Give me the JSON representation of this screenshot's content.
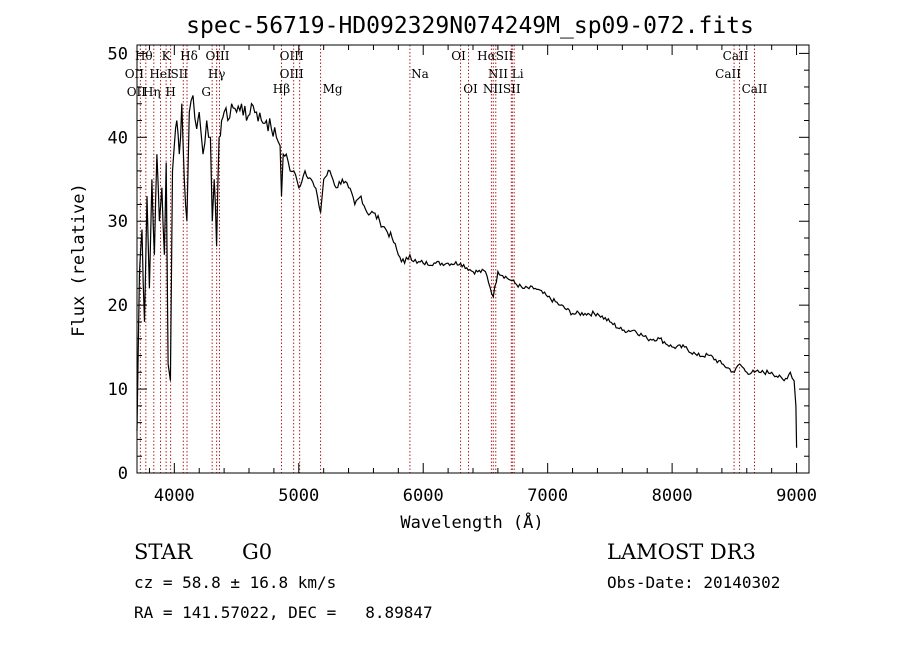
{
  "chart_data": {
    "type": "line",
    "title": "spec-56719-HD092329N074249M_sp09-072.fits",
    "xlabel": "Wavelength (Å)",
    "ylabel": "Flux (relative)",
    "xlim": [
      3700,
      9100
    ],
    "ylim": [
      0,
      51
    ],
    "xticks": [
      4000,
      5000,
      6000,
      7000,
      8000,
      9000
    ],
    "yticks": [
      0,
      10,
      20,
      30,
      40,
      50
    ],
    "series": [
      {
        "name": "flux",
        "x": [
          3700,
          3720,
          3740,
          3760,
          3780,
          3800,
          3820,
          3840,
          3860,
          3880,
          3900,
          3920,
          3935,
          3950,
          3968,
          3985,
          4000,
          4020,
          4040,
          4060,
          4080,
          4101,
          4120,
          4150,
          4180,
          4200,
          4230,
          4260,
          4290,
          4305,
          4320,
          4340,
          4360,
          4380,
          4400,
          4430,
          4460,
          4500,
          4540,
          4580,
          4620,
          4660,
          4700,
          4740,
          4780,
          4820,
          4850,
          4861,
          4875,
          4900,
          4930,
          4960,
          5000,
          5050,
          5100,
          5150,
          5175,
          5200,
          5250,
          5300,
          5350,
          5400,
          5450,
          5500,
          5550,
          5600,
          5650,
          5700,
          5750,
          5800,
          5850,
          5893,
          5950,
          6000,
          6100,
          6200,
          6300,
          6400,
          6500,
          6563,
          6600,
          6700,
          6800,
          6900,
          7000,
          7100,
          7200,
          7300,
          7400,
          7500,
          7600,
          7700,
          7800,
          7900,
          8000,
          8100,
          8200,
          8300,
          8400,
          8500,
          8542,
          8600,
          8662,
          8700,
          8800,
          8900,
          8950,
          8980,
          8995,
          9000
        ],
        "y": [
          5,
          24,
          29,
          18,
          33,
          22,
          35,
          26,
          38,
          30,
          34,
          26,
          37,
          13,
          11,
          36,
          39,
          42,
          38,
          44,
          35,
          30,
          43,
          45,
          41,
          43,
          38,
          42,
          40,
          30,
          35,
          27,
          40,
          42,
          43,
          42,
          44,
          43,
          44,
          42,
          44,
          43,
          42,
          42,
          41,
          40,
          39,
          33,
          38,
          38,
          36,
          36,
          34,
          36,
          35,
          33,
          31,
          35,
          36,
          34,
          35,
          34,
          32,
          33,
          31,
          31,
          30,
          29,
          28,
          26,
          25,
          26,
          25,
          25,
          25,
          25,
          25,
          24,
          24,
          21,
          24,
          23,
          22,
          22,
          21,
          20,
          19,
          19,
          19,
          18,
          17,
          17,
          16,
          16,
          15,
          15,
          14,
          14,
          13,
          12,
          13,
          12,
          12,
          12,
          12,
          11,
          12,
          11,
          8,
          3
        ]
      }
    ],
    "lines": [
      {
        "w": 3727,
        "labels": [
          "OII",
          "OII"
        ]
      },
      {
        "w": 3771,
        "labels": [
          "Hθ",
          "Hη"
        ]
      },
      {
        "w": 3835,
        "labels": [
          "Hη"
        ]
      },
      {
        "w": 3889,
        "labels": [
          "HeI"
        ]
      },
      {
        "w": 3934,
        "labels": [
          "K"
        ]
      },
      {
        "w": 3970,
        "labels": [
          "H"
        ]
      },
      {
        "w": 4072,
        "labels": [
          "SII"
        ]
      },
      {
        "w": 4102,
        "labels": [
          "Hδ"
        ]
      },
      {
        "w": 4304,
        "labels": [
          "G"
        ]
      },
      {
        "w": 4340,
        "labels": [
          "Hγ"
        ]
      },
      {
        "w": 4363,
        "labels": [
          "OIII"
        ]
      },
      {
        "w": 4861,
        "labels": [
          "Hβ"
        ]
      },
      {
        "w": 4959,
        "labels": [
          "OIII"
        ]
      },
      {
        "w": 5007,
        "labels": [
          "OIII"
        ]
      },
      {
        "w": 5175,
        "labels": [
          "Mg"
        ]
      },
      {
        "w": 5893,
        "labels": [
          "Na"
        ]
      },
      {
        "w": 6300,
        "labels": [
          "OI"
        ]
      },
      {
        "w": 6364,
        "labels": [
          "OI"
        ]
      },
      {
        "w": 6548,
        "labels": [
          "NII"
        ]
      },
      {
        "w": 6563,
        "labels": [
          "Hα"
        ]
      },
      {
        "w": 6583,
        "labels": [
          "NII"
        ]
      },
      {
        "w": 6708,
        "labels": [
          "Li"
        ]
      },
      {
        "w": 6716,
        "labels": [
          "SII",
          "SII"
        ]
      },
      {
        "w": 6731,
        "labels": [
          "SII"
        ]
      },
      {
        "w": 8498,
        "labels": [
          "CaII"
        ]
      },
      {
        "w": 8542,
        "labels": [
          "CaII"
        ]
      },
      {
        "w": 8662,
        "labels": [
          "CaII"
        ]
      }
    ],
    "line_labels": [
      {
        "text": "Hθ",
        "w": 3771
      },
      {
        "text": "K",
        "w": 3934
      },
      {
        "text": "Hδ",
        "w": 4102
      },
      {
        "text": "OII",
        "w": 3727
      },
      {
        "text": "HeI",
        "w": 3889
      },
      {
        "text": "SII",
        "w": 4072
      },
      {
        "text": "OII",
        "w": 3727
      },
      {
        "text": "Hη",
        "w": 3835
      },
      {
        "text": "H",
        "w": 3970
      },
      {
        "text": "OIII",
        "w": 4363
      },
      {
        "text": "Hγ",
        "w": 4340
      },
      {
        "text": "G",
        "w": 4304
      },
      {
        "text": "OIII",
        "w": 4959
      },
      {
        "text": "OIII",
        "w": 4959
      },
      {
        "text": "Hβ",
        "w": 4861
      },
      {
        "text": "Mg",
        "w": 5175
      },
      {
        "text": "Na",
        "w": 5893
      },
      {
        "text": "OI",
        "w": 6300
      },
      {
        "text": "OI",
        "w": 6364
      },
      {
        "text": "HαSII",
        "w": 6563
      },
      {
        "text": "NII Li",
        "w": 6583
      },
      {
        "text": "NIISII",
        "w": 6583
      },
      {
        "text": "CaII",
        "w": 8542
      },
      {
        "text": "CaII",
        "w": 8498
      },
      {
        "text": "CaII",
        "w": 8662
      }
    ]
  },
  "info": {
    "class": "STAR",
    "subclass": "G0",
    "survey": "LAMOST DR3",
    "cz": "cz = 58.8 ± 16.8 km/s",
    "obs_date": "Obs-Date: 20140302",
    "radec": "RA = 141.57022, DEC =   8.89847"
  },
  "colors": {
    "line_marker": "#b22222",
    "spectrum": "#000000"
  }
}
